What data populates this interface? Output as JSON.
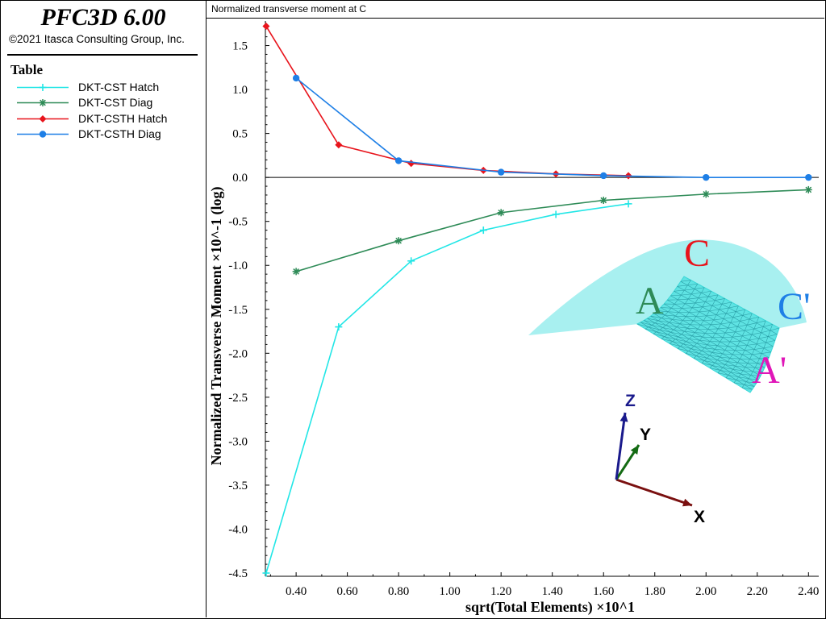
{
  "app": {
    "title": "PFC3D 6.00",
    "copyright": "©2021 Itasca Consulting Group, Inc."
  },
  "legend": {
    "heading": "Table",
    "items": [
      {
        "label": "DKT-CST Hatch",
        "color": "#22e6e6",
        "marker": "plus"
      },
      {
        "label": "DKT-CST Diag",
        "color": "#2e8b57",
        "marker": "asterisk"
      },
      {
        "label": "DKT-CSTH Hatch",
        "color": "#e8141c",
        "marker": "diamond"
      },
      {
        "label": "DKT-CSTH Diag",
        "color": "#1e7fe6",
        "marker": "circle"
      }
    ]
  },
  "plot": {
    "title": "Normalized transverse moment at C"
  },
  "chart_data": {
    "type": "line",
    "xlabel": "sqrt(Total Elements) ×10^1",
    "ylabel": "Normalized Transverse Moment ×10^-1 (log)",
    "xlim": [
      0.28,
      2.44
    ],
    "ylim": [
      -4.5,
      1.78
    ],
    "xticks": [
      "0.40",
      "0.60",
      "0.80",
      "1.00",
      "1.20",
      "1.40",
      "1.60",
      "1.80",
      "2.00",
      "2.20",
      "2.40"
    ],
    "xtick_values": [
      0.4,
      0.6,
      0.8,
      1.0,
      1.2,
      1.4,
      1.6,
      1.8,
      2.0,
      2.2,
      2.4
    ],
    "yticks": [
      "1.5",
      "1.0",
      "0.5",
      "0.0",
      "-0.5",
      "-1.0",
      "-1.5",
      "-2.0",
      "-2.5",
      "-3.0",
      "-3.5",
      "-4.0",
      "-4.5"
    ],
    "ytick_values": [
      1.5,
      1.0,
      0.5,
      0.0,
      -0.5,
      -1.0,
      -1.5,
      -2.0,
      -2.5,
      -3.0,
      -3.5,
      -4.0,
      -4.5
    ],
    "zero_line": true,
    "grid": false,
    "series": [
      {
        "name": "DKT-CST Hatch",
        "color": "#22e6e6",
        "marker": "plus",
        "x": [
          0.283,
          0.566,
          0.849,
          1.131,
          1.414,
          1.697
        ],
        "y": [
          -4.5,
          -1.7,
          -0.95,
          -0.6,
          -0.42,
          -0.3
        ]
      },
      {
        "name": "DKT-CST Diag",
        "color": "#2e8b57",
        "marker": "asterisk",
        "x": [
          0.4,
          0.8,
          1.2,
          1.6,
          2.0,
          2.4
        ],
        "y": [
          -1.07,
          -0.72,
          -0.4,
          -0.26,
          -0.19,
          -0.14
        ]
      },
      {
        "name": "DKT-CSTH Hatch",
        "color": "#e8141c",
        "marker": "diamond",
        "x": [
          0.283,
          0.566,
          0.849,
          1.131,
          1.414,
          1.697
        ],
        "y": [
          1.72,
          0.37,
          0.16,
          0.08,
          0.04,
          0.02
        ]
      },
      {
        "name": "DKT-CSTH Diag",
        "color": "#1e7fe6",
        "marker": "circle",
        "x": [
          0.4,
          0.8,
          1.2,
          1.6,
          2.0,
          2.4
        ],
        "y": [
          1.13,
          0.19,
          0.06,
          0.02,
          0.0,
          0.0
        ]
      }
    ]
  },
  "inset": {
    "labels": {
      "c": "C",
      "a": "A",
      "c_prime": "C'",
      "a_prime": "A'"
    },
    "label_colors": {
      "c": "#e8141c",
      "a": "#2e8b57",
      "c_prime": "#1e7fe6",
      "a_prime": "#e016b8"
    },
    "surface_color": "#a8f0f0",
    "mesh_color": "#3dd8d8"
  },
  "axes_triad": {
    "x_label": "X",
    "y_label": "Y",
    "z_label": "Z",
    "x_color": "#7a1010",
    "y_color": "#146b14",
    "z_color": "#1a1a8c"
  }
}
